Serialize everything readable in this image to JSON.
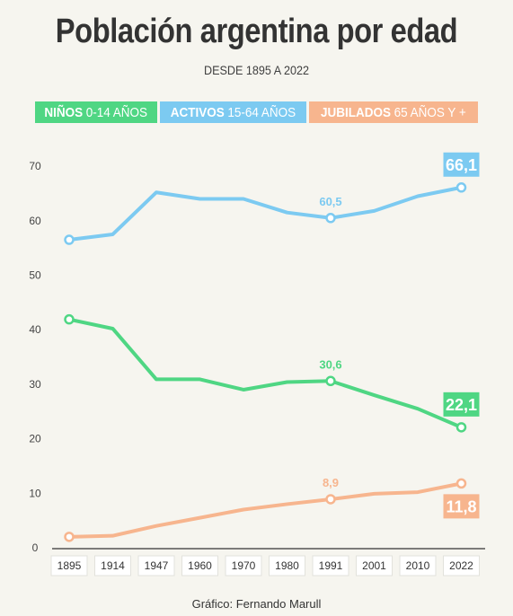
{
  "title": "Población argentina por edad",
  "subtitle": "DESDE 1895 A 2022",
  "footer": "Gráfico: Fernando Marull",
  "legend": [
    {
      "bold": "NIÑOS",
      "rest": "0-14 AÑOS",
      "color": "#4fd683"
    },
    {
      "bold": "ACTIVOS",
      "rest": "15-64 AÑOS",
      "color": "#7ccaf1"
    },
    {
      "bold": "JUBILADOS",
      "rest": "65 AÑOS Y +",
      "color": "#f7b58e"
    }
  ],
  "chart_data": {
    "type": "line",
    "categories": [
      "1895",
      "1914",
      "1947",
      "1960",
      "1970",
      "1980",
      "1991",
      "2001",
      "2010",
      "2022"
    ],
    "ylim": [
      0,
      70
    ],
    "yticks": [
      0,
      10,
      20,
      30,
      40,
      50,
      60,
      70
    ],
    "grid": false,
    "legend_position": "top",
    "series": [
      {
        "name": "ACTIVOS 15-64 AÑOS",
        "color": "#7ccaf1",
        "values": [
          56.5,
          57.5,
          65.2,
          64.0,
          64.0,
          61.5,
          60.5,
          61.8,
          64.5,
          66.1
        ],
        "annotations": [
          {
            "index": 6,
            "label": "60,5",
            "style": "plain"
          },
          {
            "index": 9,
            "label": "66,1",
            "style": "box"
          }
        ]
      },
      {
        "name": "NIÑOS 0-14 AÑOS",
        "color": "#4fd683",
        "values": [
          41.9,
          40.2,
          30.9,
          30.9,
          29.0,
          30.4,
          30.6,
          28.0,
          25.5,
          22.1
        ],
        "annotations": [
          {
            "index": 6,
            "label": "30,6",
            "style": "plain"
          },
          {
            "index": 9,
            "label": "22,1",
            "style": "box"
          }
        ]
      },
      {
        "name": "JUBILADOS 65 AÑOS Y +",
        "color": "#f7b58e",
        "values": [
          2.0,
          2.2,
          4.0,
          5.5,
          7.0,
          8.0,
          8.9,
          9.9,
          10.2,
          11.8
        ],
        "annotations": [
          {
            "index": 6,
            "label": "8,9",
            "style": "plain"
          },
          {
            "index": 9,
            "label": "11,8",
            "style": "box"
          }
        ]
      }
    ]
  }
}
